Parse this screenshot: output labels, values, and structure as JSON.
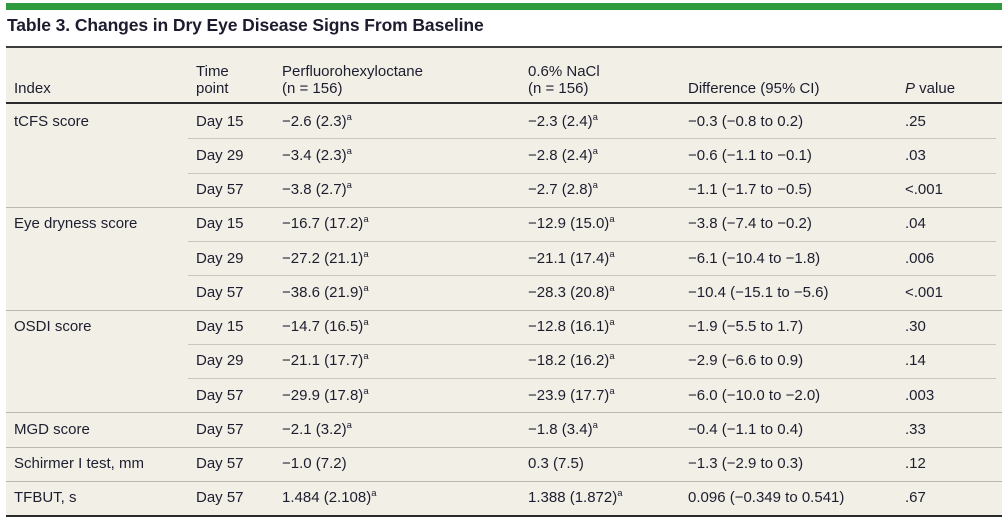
{
  "accent_color": "#2d9b3e",
  "table": {
    "title": "Table 3. Changes in Dry Eye Disease Signs From Baseline",
    "columns": {
      "index": "Index",
      "time": [
        "Time",
        "point"
      ],
      "drug": [
        "Perfluorohexyloctane",
        "(n = 156)"
      ],
      "nacl": [
        "0.6% NaCl",
        "(n = 156)"
      ],
      "diff": "Difference (95% CI)",
      "p": {
        "italic": "P",
        "rest": " value"
      }
    },
    "rows": [
      {
        "group_start": true,
        "index": "tCFS score",
        "time": "Day 15",
        "drug": "−2.6 (2.3)",
        "drug_sup": "a",
        "nacl": "−2.3 (2.4)",
        "nacl_sup": "a",
        "diff": "−0.3 (−0.8 to 0.2)",
        "p": ".25"
      },
      {
        "group_start": false,
        "index": "",
        "time": "Day 29",
        "drug": "−3.4 (2.3)",
        "drug_sup": "a",
        "nacl": "−2.8 (2.4)",
        "nacl_sup": "a",
        "diff": "−0.6 (−1.1 to −0.1)",
        "p": ".03"
      },
      {
        "group_start": false,
        "index": "",
        "time": "Day 57",
        "drug": "−3.8 (2.7)",
        "drug_sup": "a",
        "nacl": "−2.7 (2.8)",
        "nacl_sup": "a",
        "diff": "−1.1 (−1.7 to −0.5)",
        "p": "<.001"
      },
      {
        "group_start": true,
        "index": "Eye dryness score",
        "time": "Day 15",
        "drug": "−16.7 (17.2)",
        "drug_sup": "a",
        "nacl": "−12.9 (15.0)",
        "nacl_sup": "a",
        "diff": "−3.8 (−7.4 to −0.2)",
        "p": ".04"
      },
      {
        "group_start": false,
        "index": "",
        "time": "Day 29",
        "drug": "−27.2 (21.1)",
        "drug_sup": "a",
        "nacl": "−21.1 (17.4)",
        "nacl_sup": "a",
        "diff": "−6.1 (−10.4 to −1.8)",
        "p": ".006"
      },
      {
        "group_start": false,
        "index": "",
        "time": "Day 57",
        "drug": "−38.6 (21.9)",
        "drug_sup": "a",
        "nacl": "−28.3 (20.8)",
        "nacl_sup": "a",
        "diff": "−10.4 (−15.1 to −5.6)",
        "p": "<.001"
      },
      {
        "group_start": true,
        "index": "OSDI score",
        "time": "Day 15",
        "drug": "−14.7 (16.5)",
        "drug_sup": "a",
        "nacl": "−12.8 (16.1)",
        "nacl_sup": "a",
        "diff": "−1.9 (−5.5 to 1.7)",
        "p": ".30"
      },
      {
        "group_start": false,
        "index": "",
        "time": "Day 29",
        "drug": "−21.1 (17.7)",
        "drug_sup": "a",
        "nacl": "−18.2 (16.2)",
        "nacl_sup": "a",
        "diff": "−2.9 (−6.6 to 0.9)",
        "p": ".14"
      },
      {
        "group_start": false,
        "index": "",
        "time": "Day 57",
        "drug": "−29.9 (17.8)",
        "drug_sup": "a",
        "nacl": "−23.9 (17.7)",
        "nacl_sup": "a",
        "diff": "−6.0 (−10.0 to −2.0)",
        "p": ".003"
      },
      {
        "group_start": true,
        "index": "MGD score",
        "time": "Day 57",
        "drug": "−2.1 (3.2)",
        "drug_sup": "a",
        "nacl": "−1.8 (3.4)",
        "nacl_sup": "a",
        "diff": "−0.4 (−1.1 to 0.4)",
        "p": ".33"
      },
      {
        "group_start": true,
        "index": "Schirmer I test, mm",
        "time": "Day 57",
        "drug": "−1.0 (7.2)",
        "drug_sup": "",
        "nacl": "0.3 (7.5)",
        "nacl_sup": "",
        "diff": "−1.3 (−2.9 to 0.3)",
        "p": ".12"
      },
      {
        "group_start": true,
        "index": "TFBUT, s",
        "time": "Day 57",
        "drug": "1.484 (2.108)",
        "drug_sup": "a",
        "nacl": "1.388 (1.872)",
        "nacl_sup": "a",
        "diff": "0.096 (−0.349 to 0.541)",
        "p": ".67"
      }
    ]
  }
}
